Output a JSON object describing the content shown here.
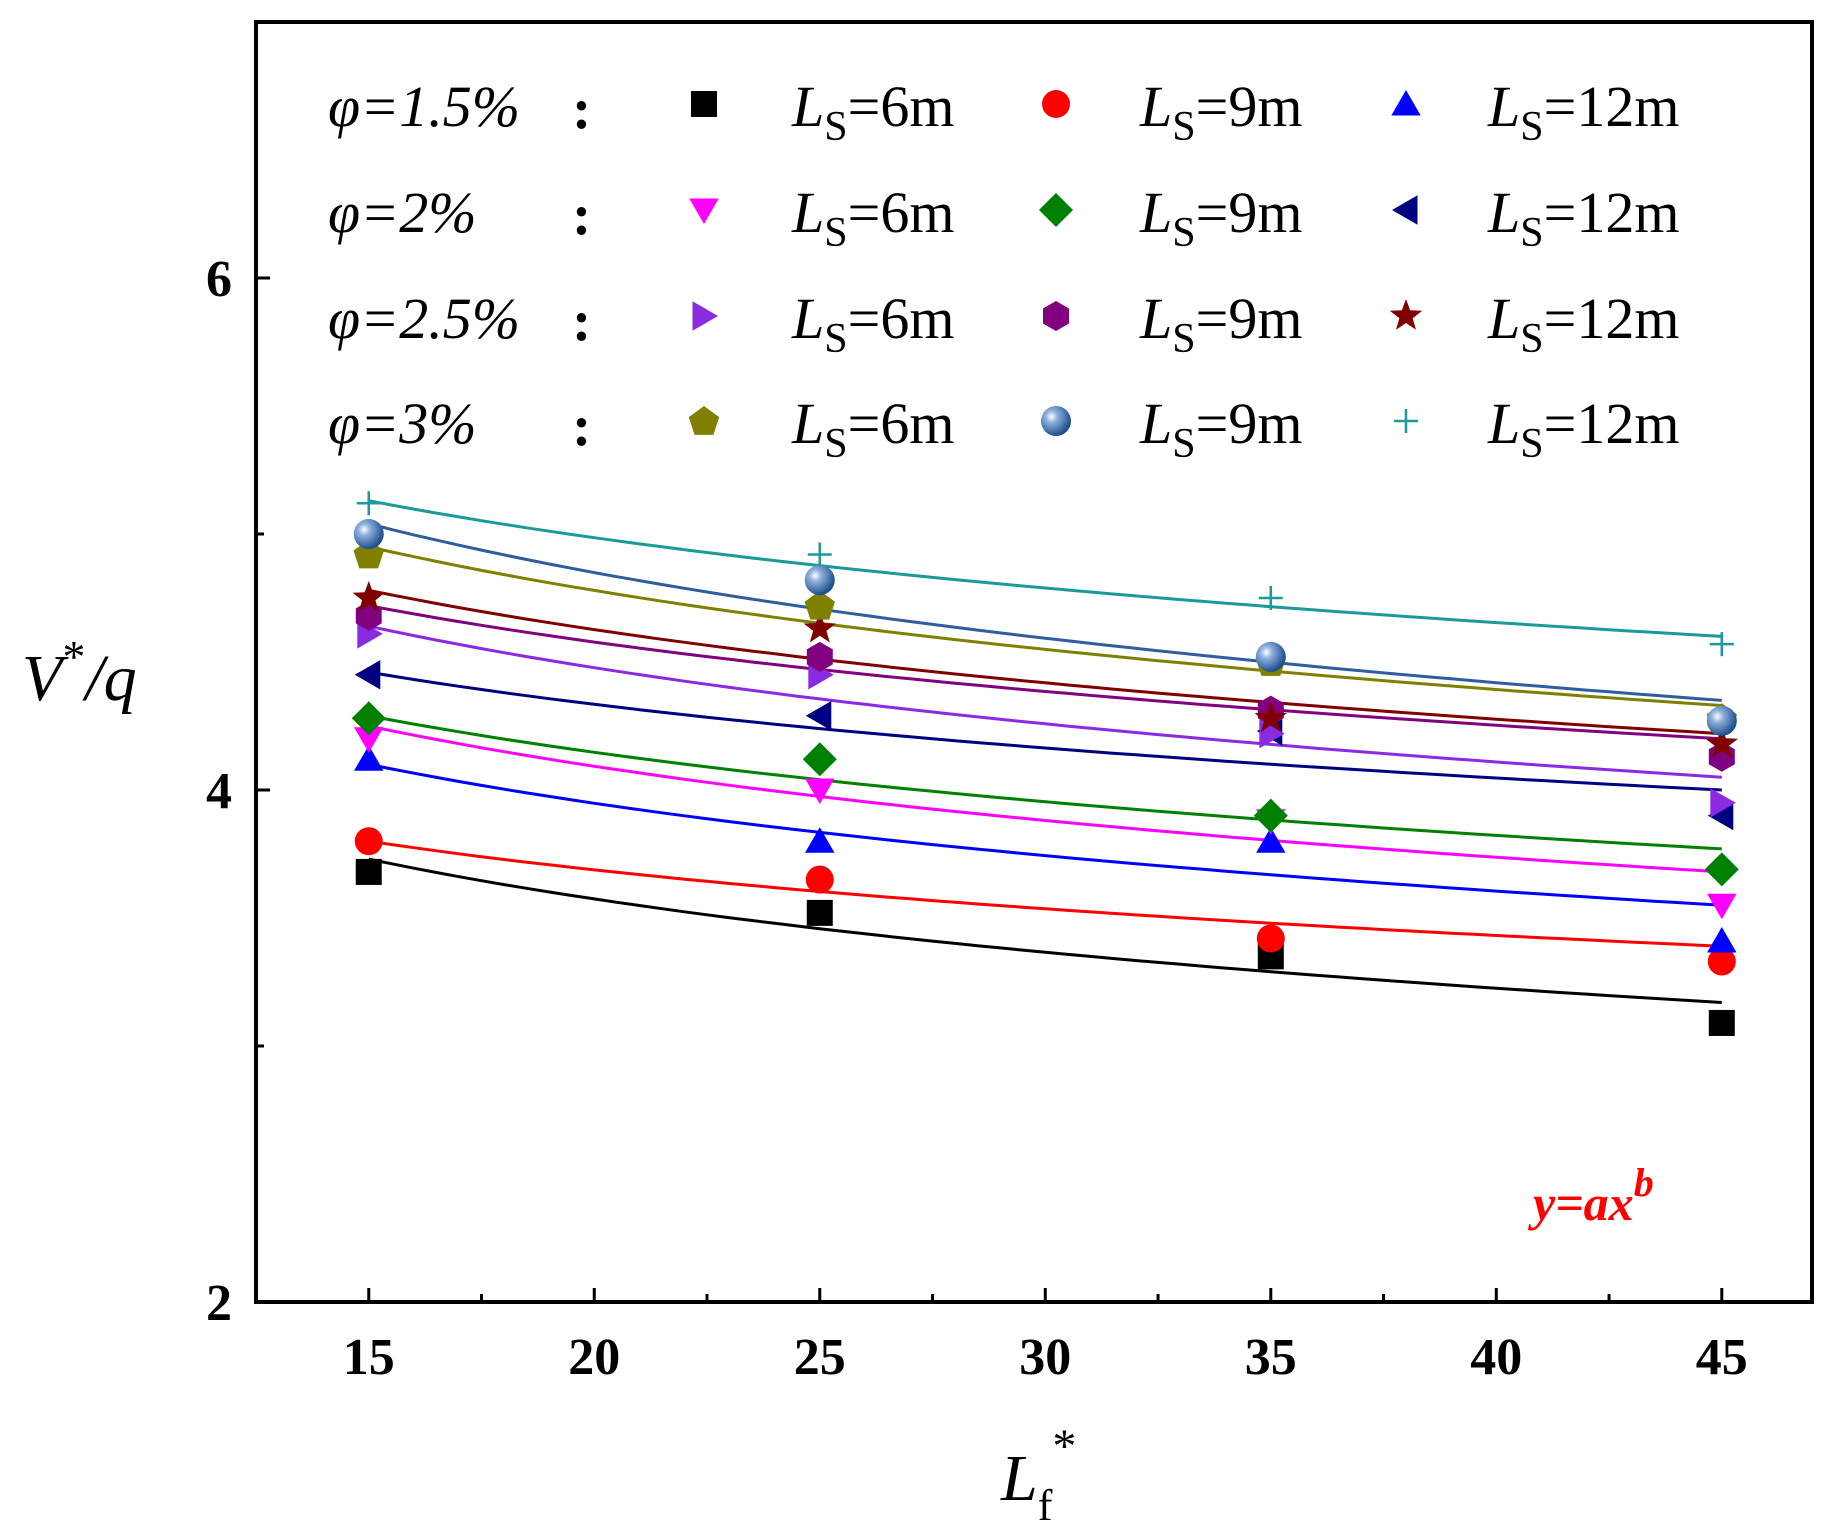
{
  "chart_data": {
    "type": "scatter",
    "title": "",
    "xlabel": {
      "base": "L",
      "sub": "f",
      "sup": "*"
    },
    "ylabel": {
      "v": "V",
      "sup": "*",
      "rest": "/q"
    },
    "xlim": [
      12.5,
      47
    ],
    "ylim": [
      2,
      7
    ],
    "xticks": [
      15,
      20,
      25,
      30,
      35,
      40,
      45
    ],
    "yticks": [
      2,
      4,
      6
    ],
    "x": [
      15,
      25,
      35,
      45
    ],
    "annotation": {
      "text": "y=ax",
      "sup": "b",
      "color": "#ff0000"
    },
    "legend_label": {
      "base": "L",
      "sub": "S"
    },
    "groups": [
      {
        "phi": "φ=1.5%",
        "colon": ":"
      },
      {
        "phi": "φ=2%",
        "colon": ":"
      },
      {
        "phi": "φ=2.5%",
        "colon": ":"
      },
      {
        "phi": "φ=3%",
        "colon": ":"
      }
    ],
    "series": [
      {
        "name": "φ=1.5%, Ls=6m",
        "group": 0,
        "ls_text": "=6m",
        "marker": "square",
        "color": "#000000",
        "values": [
          3.68,
          3.52,
          3.35,
          3.09
        ],
        "fit": [
          3.73,
          3.48,
          3.3,
          3.17
        ]
      },
      {
        "name": "φ=1.5%, Ls=9m",
        "group": 0,
        "ls_text": "=9m",
        "marker": "circle",
        "color": "#ff0000",
        "values": [
          3.8,
          3.65,
          3.42,
          3.33
        ],
        "fit": [
          3.8,
          3.6,
          3.48,
          3.39
        ]
      },
      {
        "name": "φ=1.5%, Ls=12m",
        "group": 0,
        "ls_text": "=12m",
        "marker": "triangle-up",
        "color": "#0000ff",
        "values": [
          4.12,
          3.8,
          3.8,
          3.41
        ],
        "fit": [
          4.1,
          3.82,
          3.66,
          3.55
        ]
      },
      {
        "name": "φ=2%, Ls=6m",
        "group": 1,
        "ls_text": "=6m",
        "marker": "triangle-down",
        "color": "#ff00ff",
        "values": [
          4.2,
          4.0,
          3.88,
          3.55
        ],
        "fit": [
          4.25,
          3.97,
          3.8,
          3.68
        ]
      },
      {
        "name": "φ=2%, Ls=9m",
        "group": 1,
        "ls_text": "=9m",
        "marker": "diamond",
        "color": "#008000",
        "values": [
          4.28,
          4.12,
          3.9,
          3.69
        ],
        "fit": [
          4.29,
          4.04,
          3.87,
          3.77
        ]
      },
      {
        "name": "φ=2%, Ls=12m",
        "group": 1,
        "ls_text": "=12m",
        "marker": "triangle-left",
        "color": "#000080",
        "values": [
          4.45,
          4.29,
          4.23,
          3.9
        ],
        "fit": [
          4.46,
          4.25,
          4.1,
          4.0
        ]
      },
      {
        "name": "φ=2.5%, Ls=6m",
        "group": 2,
        "ls_text": "=6m",
        "marker": "triangle-right",
        "color": "#8a2be2",
        "values": [
          4.61,
          4.45,
          4.22,
          3.95
        ],
        "fit": [
          4.64,
          4.37,
          4.18,
          4.05
        ]
      },
      {
        "name": "φ=2.5%, Ls=9m",
        "group": 2,
        "ls_text": "=9m",
        "marker": "hexagon",
        "color": "#800080",
        "values": [
          4.68,
          4.52,
          4.31,
          4.13
        ],
        "fit": [
          4.72,
          4.44,
          4.27,
          4.2
        ]
      },
      {
        "name": "φ=2.5%, Ls=12m",
        "group": 2,
        "ls_text": "=12m",
        "marker": "star",
        "color": "#800000",
        "values": [
          4.75,
          4.63,
          4.28,
          4.18
        ],
        "fit": [
          4.78,
          4.5,
          4.33,
          4.22
        ]
      },
      {
        "name": "φ=3%, Ls=6m",
        "group": 3,
        "ls_text": "=6m",
        "marker": "pentagon",
        "color": "#808000",
        "values": [
          4.92,
          4.72,
          4.5,
          4.28
        ],
        "fit": [
          4.95,
          4.65,
          4.47,
          4.33
        ]
      },
      {
        "name": "φ=3%, Ls=9m",
        "group": 3,
        "ls_text": "=9m",
        "marker": "sphere",
        "color": "#2f5e9e",
        "values": [
          5.0,
          4.82,
          4.52,
          4.27
        ],
        "fit": [
          5.04,
          4.73,
          4.49,
          4.35
        ]
      },
      {
        "name": "φ=3%, Ls=12m",
        "group": 3,
        "ls_text": "=12m",
        "marker": "plus",
        "color": "#1a9a9a",
        "values": [
          5.12,
          4.92,
          4.75,
          4.57
        ],
        "fit": [
          5.13,
          4.87,
          4.71,
          4.6
        ]
      }
    ]
  }
}
